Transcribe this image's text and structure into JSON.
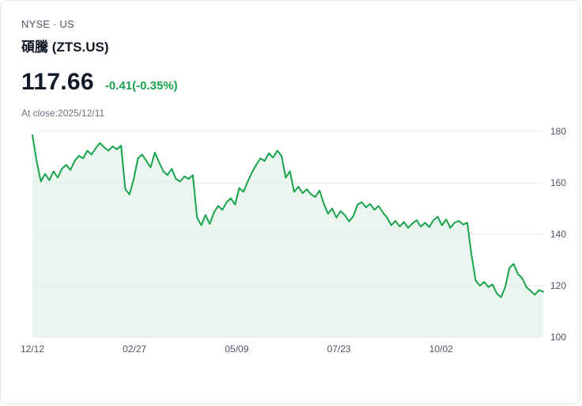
{
  "header": {
    "exchange_line": "NYSE · US",
    "title": "碩騰 (ZTS.US)",
    "price": "117.66",
    "change": "-0.41(-0.35%)",
    "close_info": "At close:2025/12/11"
  },
  "colors": {
    "line": "#17A34A",
    "area": "#E9F5EE",
    "grid": "#E8EAEC",
    "change_text": "#17A34A",
    "axis_text": "#4B5563"
  },
  "chart_data": {
    "type": "line",
    "title": "ZTS.US 1-year price",
    "xlabel": "",
    "ylabel": "",
    "x_ticks": [
      "12/12",
      "02/27",
      "05/09",
      "07/23",
      "10/02"
    ],
    "y_ticks": [
      180,
      160,
      140,
      120,
      100
    ],
    "ylim": [
      100,
      180
    ],
    "grid": true,
    "legend": "none",
    "series": [
      {
        "name": "ZTS.US",
        "values": [
          178.5,
          168.5,
          160.5,
          163.5,
          161.0,
          164.5,
          162.0,
          165.5,
          167.0,
          165.0,
          168.5,
          170.5,
          169.5,
          172.5,
          171.0,
          173.5,
          175.5,
          173.8,
          172.5,
          174.2,
          173.0,
          174.5,
          157.5,
          155.5,
          161.5,
          169.5,
          171.0,
          168.5,
          166.0,
          171.8,
          168.0,
          164.5,
          163.0,
          165.5,
          161.5,
          160.5,
          162.5,
          161.5,
          163.0,
          146.5,
          143.5,
          147.5,
          144.0,
          148.5,
          151.0,
          149.5,
          152.5,
          154.0,
          151.5,
          158.0,
          156.5,
          160.5,
          164.0,
          167.0,
          169.5,
          168.5,
          171.5,
          169.8,
          172.5,
          170.5,
          162.0,
          164.5,
          156.5,
          158.5,
          156.0,
          157.5,
          155.5,
          154.5,
          157.0,
          152.0,
          148.0,
          150.0,
          146.5,
          149.0,
          147.5,
          145.0,
          147.0,
          151.5,
          152.5,
          150.5,
          151.8,
          149.5,
          151.0,
          148.5,
          146.5,
          143.5,
          145.2,
          143.0,
          144.8,
          142.5,
          144.2,
          145.5,
          143.0,
          144.5,
          142.8,
          145.5,
          146.8,
          143.5,
          145.8,
          142.5,
          144.5,
          145.2,
          143.8,
          144.5,
          132.0,
          122.0,
          120.0,
          121.5,
          119.5,
          120.5,
          117.0,
          115.5,
          119.5,
          127.0,
          128.5,
          124.5,
          123.0,
          119.5,
          118.0,
          116.5,
          118.3,
          117.66
        ]
      }
    ]
  }
}
